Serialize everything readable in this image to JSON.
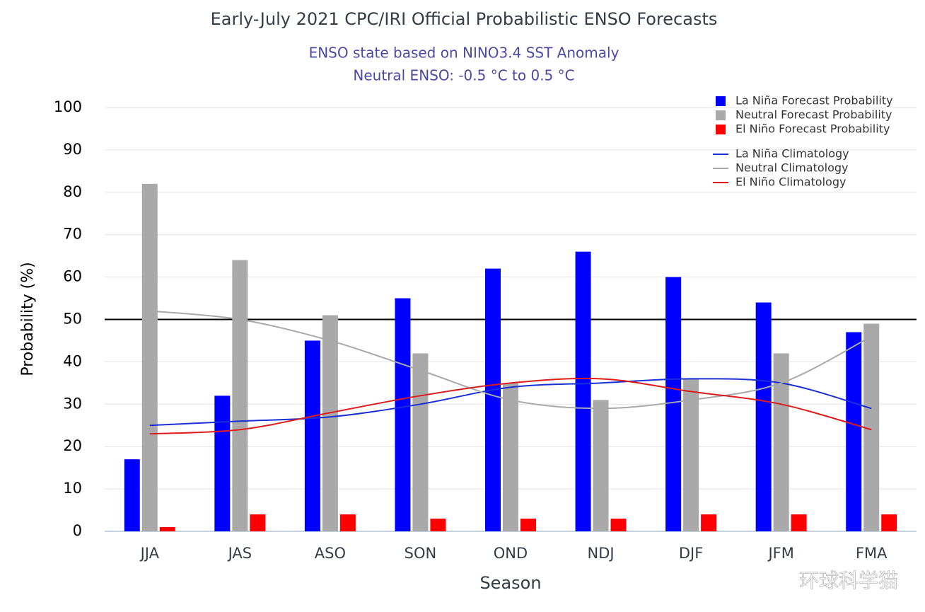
{
  "chart_data": {
    "type": "bar",
    "title": "Early-July 2021 CPC/IRI Official Probabilistic ENSO Forecasts",
    "subtitle": [
      "ENSO state based on NINO3.4 SST Anomaly",
      "Neutral ENSO: -0.5 °C to 0.5 °C"
    ],
    "x_label": "Season",
    "y_label": "Probability (%)",
    "categories": [
      "JJA",
      "JAS",
      "ASO",
      "SON",
      "OND",
      "NDJ",
      "DJF",
      "JFM",
      "FMA"
    ],
    "series": [
      {
        "name": "La Niña Forecast Probability",
        "type": "bar",
        "color": "#0000ff",
        "values": [
          17,
          32,
          45,
          55,
          62,
          66,
          60,
          54,
          47
        ]
      },
      {
        "name": "Neutral Forecast Probability",
        "type": "bar",
        "color": "#a9a9a9",
        "values": [
          82,
          64,
          51,
          42,
          35,
          31,
          36,
          42,
          49
        ]
      },
      {
        "name": "El Niño Forecast Probability",
        "type": "bar",
        "color": "#ff0000",
        "values": [
          1,
          4,
          4,
          3,
          3,
          3,
          4,
          4,
          4
        ]
      },
      {
        "name": "La Niña Climatology",
        "type": "line",
        "color": "#1a2fd6",
        "values": [
          25,
          26,
          27,
          30,
          34,
          35,
          36,
          35,
          29
        ]
      },
      {
        "name": "Neutral Climatology",
        "type": "line",
        "color": "#a9a9a9",
        "values": [
          52,
          50,
          45,
          38,
          31,
          29,
          31,
          35,
          46
        ]
      },
      {
        "name": "El Niño Climatology",
        "type": "line",
        "color": "#e01b1b",
        "values": [
          23,
          24,
          28,
          32,
          35,
          36,
          33,
          30,
          24
        ]
      }
    ],
    "ylim": [
      0,
      100
    ],
    "yticks": [
      0,
      10,
      20,
      30,
      40,
      50,
      60,
      70,
      80,
      90,
      100
    ],
    "grid": true,
    "reference_line": 50,
    "legend": "upper right",
    "watermark": "环球科学猫"
  }
}
